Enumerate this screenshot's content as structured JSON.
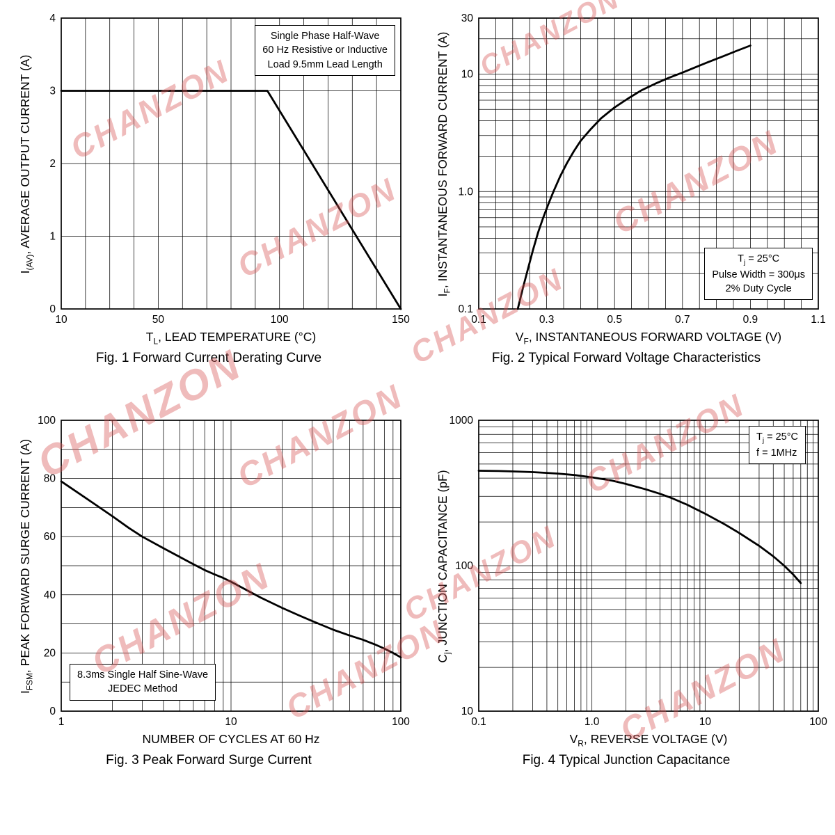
{
  "watermark": {
    "text": "CHANZON",
    "color": "#d65656"
  },
  "chart_data": [
    {
      "id": "fig1",
      "type": "line",
      "caption": "Fig. 1  Forward Current Derating Curve",
      "xlabel": [
        {
          "t": "T"
        },
        {
          "t": "L",
          "sub": true
        },
        {
          "t": ", LEAD TEMPERATURE (°C)"
        }
      ],
      "ylabel": [
        {
          "t": "I"
        },
        {
          "t": "(AV)",
          "sub": true
        },
        {
          "t": ", AVERAGE OUTPUT CURRENT (A)"
        }
      ],
      "x_axis": {
        "scale": "linear",
        "min": 10,
        "max": 150,
        "grid_step": 10,
        "ticks": [
          {
            "v": 10,
            "l": "10"
          },
          {
            "v": 50,
            "l": "50"
          },
          {
            "v": 100,
            "l": "100"
          },
          {
            "v": 150,
            "l": "150"
          }
        ]
      },
      "y_axis": {
        "scale": "linear",
        "min": 0,
        "max": 4,
        "grid_step": 1,
        "ticks": [
          {
            "v": 0,
            "l": "0"
          },
          {
            "v": 1,
            "l": "1"
          },
          {
            "v": 2,
            "l": "2"
          },
          {
            "v": 3,
            "l": "3"
          },
          {
            "v": 4,
            "l": "4"
          }
        ]
      },
      "series": [
        {
          "name": "derating-curve",
          "points": [
            [
              10,
              3
            ],
            [
              95,
              3
            ],
            [
              150,
              0
            ]
          ]
        }
      ],
      "annotation": {
        "lines": [
          [
            {
              "t": "Single Phase Half-Wave"
            }
          ],
          [
            {
              "t": "60 Hz Resistive or Inductive"
            }
          ],
          [
            {
              "t": "Load 9.5mm Lead Length"
            }
          ]
        ]
      }
    },
    {
      "id": "fig2",
      "type": "line",
      "caption": "Fig. 2  Typical Forward Voltage Characteristics",
      "xlabel": [
        {
          "t": "V"
        },
        {
          "t": "F",
          "sub": true
        },
        {
          "t": ", INSTANTANEOUS FORWARD VOLTAGE (V)"
        }
      ],
      "ylabel": [
        {
          "t": "I"
        },
        {
          "t": "F",
          "sub": true
        },
        {
          "t": ", INSTANTANEOUS FORWARD CURRENT (A)"
        }
      ],
      "x_axis": {
        "scale": "linear",
        "min": 0.1,
        "max": 1.1,
        "grid_step": 0.05,
        "ticks": [
          {
            "v": 0.1,
            "l": "0.1"
          },
          {
            "v": 0.3,
            "l": "0.3"
          },
          {
            "v": 0.5,
            "l": "0.5"
          },
          {
            "v": 0.7,
            "l": "0.7"
          },
          {
            "v": 0.9,
            "l": "0.9"
          },
          {
            "v": 1.1,
            "l": "1.1"
          }
        ]
      },
      "y_axis": {
        "scale": "log",
        "min": 0.1,
        "max": 30,
        "ticks": [
          {
            "v": 0.1,
            "l": "0.1"
          },
          {
            "v": 1,
            "l": "1.0"
          },
          {
            "v": 10,
            "l": "10"
          },
          {
            "v": 30,
            "l": "30"
          }
        ]
      },
      "series": [
        {
          "name": "forward-voltage-curve",
          "points": [
            [
              0.215,
              0.1
            ],
            [
              0.23,
              0.15
            ],
            [
              0.245,
              0.22
            ],
            [
              0.26,
              0.32
            ],
            [
              0.275,
              0.45
            ],
            [
              0.29,
              0.6
            ],
            [
              0.305,
              0.78
            ],
            [
              0.32,
              1.0
            ],
            [
              0.34,
              1.35
            ],
            [
              0.36,
              1.75
            ],
            [
              0.38,
              2.2
            ],
            [
              0.4,
              2.7
            ],
            [
              0.43,
              3.4
            ],
            [
              0.46,
              4.2
            ],
            [
              0.5,
              5.2
            ],
            [
              0.54,
              6.2
            ],
            [
              0.58,
              7.3
            ],
            [
              0.62,
              8.3
            ],
            [
              0.66,
              9.3
            ],
            [
              0.7,
              10.3
            ],
            [
              0.74,
              11.5
            ],
            [
              0.78,
              12.8
            ],
            [
              0.82,
              14.2
            ],
            [
              0.86,
              15.8
            ],
            [
              0.9,
              17.5
            ]
          ]
        }
      ],
      "annotation": {
        "lines": [
          [
            {
              "t": "T"
            },
            {
              "t": "j",
              "sub": true
            },
            {
              "t": " = 25°C"
            }
          ],
          [
            {
              "t": "Pulse Width = 300μs"
            }
          ],
          [
            {
              "t": "2% Duty Cycle"
            }
          ]
        ]
      }
    },
    {
      "id": "fig3",
      "type": "line",
      "caption": "Fig. 3  Peak Forward Surge Current",
      "xlabel": [
        {
          "t": "NUMBER OF CYCLES AT 60 Hz"
        }
      ],
      "ylabel": [
        {
          "t": "I"
        },
        {
          "t": "FSM",
          "sub": true
        },
        {
          "t": ", PEAK FORWARD SURGE CURRENT (A)"
        }
      ],
      "x_axis": {
        "scale": "log",
        "min": 1,
        "max": 100,
        "ticks": [
          {
            "v": 1,
            "l": "1"
          },
          {
            "v": 10,
            "l": "10"
          },
          {
            "v": 100,
            "l": "100"
          }
        ]
      },
      "y_axis": {
        "scale": "linear",
        "min": 0,
        "max": 100,
        "grid_step": 10,
        "ticks": [
          {
            "v": 0,
            "l": "0"
          },
          {
            "v": 20,
            "l": "20"
          },
          {
            "v": 40,
            "l": "40"
          },
          {
            "v": 60,
            "l": "60"
          },
          {
            "v": 80,
            "l": "80"
          },
          {
            "v": 100,
            "l": "100"
          }
        ]
      },
      "series": [
        {
          "name": "surge-current-curve",
          "points": [
            [
              1,
              79
            ],
            [
              1.5,
              72
            ],
            [
              2,
              67
            ],
            [
              2.5,
              63
            ],
            [
              3,
              60
            ],
            [
              4,
              56
            ],
            [
              5,
              53
            ],
            [
              6,
              50.5
            ],
            [
              7,
              48.5
            ],
            [
              8,
              47
            ],
            [
              9,
              45.8
            ],
            [
              10,
              44.5
            ],
            [
              12,
              42
            ],
            [
              15,
              39
            ],
            [
              20,
              35.5
            ],
            [
              25,
              33
            ],
            [
              30,
              31
            ],
            [
              40,
              28
            ],
            [
              50,
              26
            ],
            [
              60,
              24.5
            ],
            [
              70,
              23
            ],
            [
              80,
              21.5
            ],
            [
              90,
              20
            ],
            [
              100,
              18.5
            ]
          ]
        }
      ],
      "annotation": {
        "lines": [
          [
            {
              "t": "8.3ms Single Half Sine-Wave"
            }
          ],
          [
            {
              "t": "JEDEC Method"
            }
          ]
        ]
      }
    },
    {
      "id": "fig4",
      "type": "line",
      "caption": "Fig. 4  Typical  Junction Capacitance",
      "xlabel": [
        {
          "t": "V"
        },
        {
          "t": "R",
          "sub": true
        },
        {
          "t": ", REVERSE VOLTAGE (V)"
        }
      ],
      "ylabel": [
        {
          "t": "C"
        },
        {
          "t": "j",
          "sub": true
        },
        {
          "t": ", JUNCTION CAPACITANCE (pF)"
        }
      ],
      "x_axis": {
        "scale": "log",
        "min": 0.1,
        "max": 100,
        "ticks": [
          {
            "v": 0.1,
            "l": "0.1"
          },
          {
            "v": 1,
            "l": "1.0"
          },
          {
            "v": 10,
            "l": "10"
          },
          {
            "v": 100,
            "l": "100"
          }
        ]
      },
      "y_axis": {
        "scale": "log",
        "min": 10,
        "max": 1000,
        "ticks": [
          {
            "v": 10,
            "l": "10"
          },
          {
            "v": 100,
            "l": "100"
          },
          {
            "v": 1000,
            "l": "1000"
          }
        ]
      },
      "series": [
        {
          "name": "junction-capacitance-curve",
          "points": [
            [
              0.1,
              450
            ],
            [
              0.15,
              448
            ],
            [
              0.2,
              445
            ],
            [
              0.3,
              440
            ],
            [
              0.4,
              435
            ],
            [
              0.5,
              430
            ],
            [
              0.7,
              420
            ],
            [
              1,
              405
            ],
            [
              1.5,
              385
            ],
            [
              2,
              365
            ],
            [
              3,
              335
            ],
            [
              4,
              312
            ],
            [
              5,
              293
            ],
            [
              7,
              262
            ],
            [
              10,
              228
            ],
            [
              15,
              192
            ],
            [
              20,
              168
            ],
            [
              30,
              137
            ],
            [
              40,
              116
            ],
            [
              50,
              100
            ],
            [
              60,
              87
            ],
            [
              70,
              76
            ]
          ]
        }
      ],
      "annotation": {
        "lines": [
          [
            {
              "t": "T"
            },
            {
              "t": "j",
              "sub": true
            },
            {
              "t": " = 25°C"
            }
          ],
          [
            {
              "t": "f =  1MHz"
            }
          ]
        ]
      }
    }
  ]
}
